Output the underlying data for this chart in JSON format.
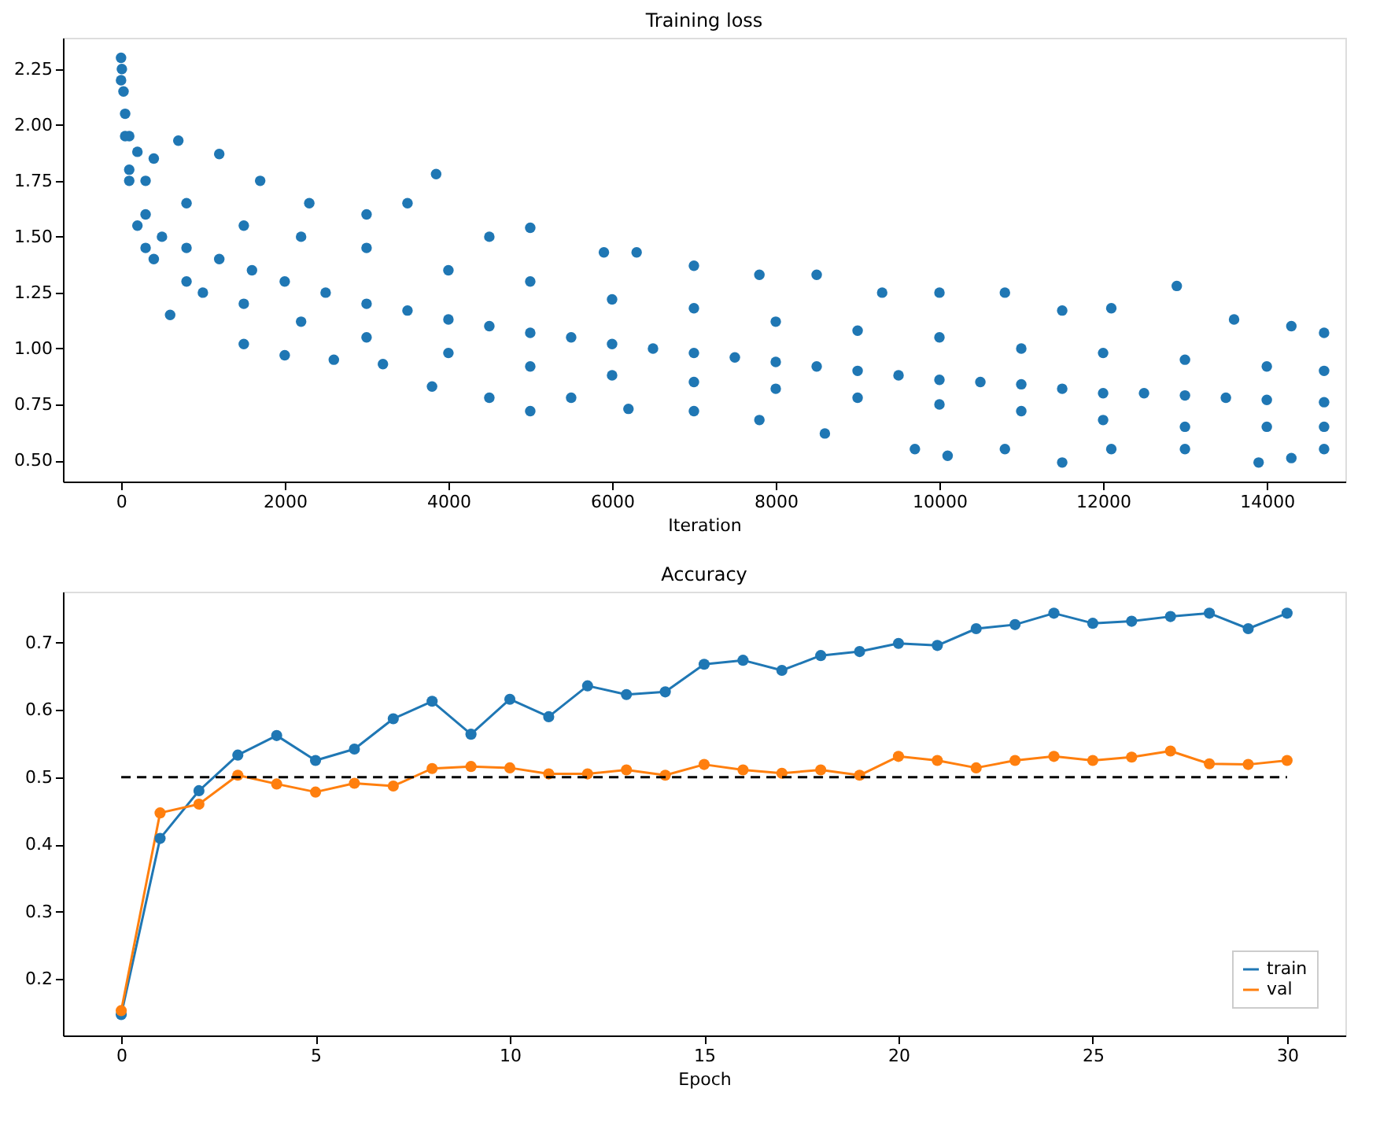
{
  "chart_data": [
    {
      "type": "scatter",
      "title": "Training loss",
      "xlabel": "Iteration",
      "xlim": [
        -710,
        14960
      ],
      "ylim": [
        0.405,
        2.39
      ],
      "xticks": [
        0,
        2000,
        4000,
        6000,
        8000,
        10000,
        12000,
        14000
      ],
      "yticks": [
        {
          "value": 0.5,
          "label": "0.50"
        },
        0.75,
        {
          "value": 1.0,
          "label": "1.00"
        },
        1.25,
        {
          "value": 1.5,
          "label": "1.50"
        },
        1.75,
        {
          "value": 2.0,
          "label": "2.00"
        },
        2.25
      ],
      "grid": false,
      "legend": false,
      "marker": "circle",
      "series": [
        {
          "color": "#1f77b4",
          "x": [
            0,
            0,
            10,
            30,
            50,
            100,
            200,
            400,
            700,
            1200,
            1700,
            2300,
            3000,
            3500,
            3850,
            4500,
            5000,
            5900,
            6300,
            7000,
            7800,
            8500,
            9300,
            10000,
            10800,
            11500,
            12100,
            12900,
            13600,
            14300,
            14700,
            50,
            100,
            200,
            400,
            600,
            1000,
            1500,
            2000,
            2600,
            3200,
            3800,
            4500,
            5000,
            5500,
            6200,
            7000,
            7800,
            8600,
            9700,
            10100,
            10800,
            11500,
            12100,
            13000,
            13900,
            14300,
            14700,
            100,
            300,
            500,
            800,
            1200,
            1600,
            2000,
            2500,
            3000,
            3500,
            4000,
            4500,
            5000,
            5500,
            6000,
            6500,
            7000,
            7500,
            8000,
            8500,
            9000,
            9500,
            10000,
            10500,
            11000,
            11500,
            12000,
            12500,
            13000,
            13500,
            14000,
            14700,
            300,
            800,
            1500,
            2200,
            3000,
            4000,
            5000,
            6000,
            7000,
            8000,
            9000,
            10000,
            11000,
            12000,
            13000,
            14000,
            14700,
            300,
            800,
            1500,
            2200,
            3000,
            4000,
            5000,
            6000,
            7000,
            8000,
            9000,
            10000,
            11000,
            12000,
            13000,
            14000,
            14700
          ],
          "values": [
            2.3,
            2.2,
            2.25,
            2.15,
            2.05,
            1.95,
            1.88,
            1.85,
            1.93,
            1.87,
            1.75,
            1.65,
            1.6,
            1.65,
            1.78,
            1.5,
            1.54,
            1.43,
            1.43,
            1.37,
            1.33,
            1.33,
            1.25,
            1.25,
            1.25,
            1.17,
            1.18,
            1.28,
            1.13,
            1.1,
            1.07,
            1.95,
            1.75,
            1.55,
            1.4,
            1.15,
            1.25,
            1.02,
            0.97,
            0.95,
            0.93,
            0.83,
            0.78,
            0.72,
            0.78,
            0.73,
            0.72,
            0.68,
            0.62,
            0.55,
            0.52,
            0.55,
            0.49,
            0.55,
            0.55,
            0.49,
            0.51,
            0.55,
            1.8,
            1.6,
            1.5,
            1.45,
            1.4,
            1.35,
            1.3,
            1.25,
            1.2,
            1.17,
            1.13,
            1.1,
            1.07,
            1.05,
            1.02,
            1.0,
            0.98,
            0.96,
            0.94,
            0.92,
            0.9,
            0.88,
            0.86,
            0.85,
            0.84,
            0.82,
            0.8,
            0.8,
            0.79,
            0.78,
            0.77,
            0.76,
            1.75,
            1.65,
            1.55,
            1.5,
            1.45,
            1.35,
            1.3,
            1.22,
            1.18,
            1.12,
            1.08,
            1.05,
            1.0,
            0.98,
            0.95,
            0.92,
            0.9,
            1.45,
            1.3,
            1.2,
            1.12,
            1.05,
            0.98,
            0.92,
            0.88,
            0.85,
            0.82,
            0.78,
            0.75,
            0.72,
            0.68,
            0.65,
            0.65,
            0.65
          ]
        }
      ]
    },
    {
      "type": "line",
      "title": "Accuracy",
      "xlabel": "Epoch",
      "xlim": [
        -1.5,
        31.5
      ],
      "ylim": [
        0.116,
        0.776
      ],
      "xticks": [
        0,
        5,
        10,
        15,
        20,
        25,
        30
      ],
      "yticks": [
        0.2,
        0.3,
        0.4,
        0.5,
        0.6,
        0.7
      ],
      "x": [
        0,
        1,
        2,
        3,
        4,
        5,
        6,
        7,
        8,
        9,
        10,
        11,
        12,
        13,
        14,
        15,
        16,
        17,
        18,
        19,
        20,
        21,
        22,
        23,
        24,
        25,
        26,
        27,
        28,
        29,
        30
      ],
      "grid": false,
      "legend": "bottom right",
      "marker": "circle",
      "line_style": "solid",
      "ref_lines": [
        {
          "axis": "y",
          "value": 0.5,
          "color": "#000000",
          "line_style": "dashed"
        }
      ],
      "series": [
        {
          "name": "train",
          "color": "#1f77b4",
          "values": [
            0.147,
            0.409,
            0.48,
            0.533,
            0.562,
            0.525,
            0.542,
            0.587,
            0.613,
            0.564,
            0.616,
            0.59,
            0.636,
            0.623,
            0.627,
            0.668,
            0.674,
            0.659,
            0.681,
            0.687,
            0.699,
            0.696,
            0.721,
            0.727,
            0.744,
            0.729,
            0.732,
            0.739,
            0.744,
            0.721,
            0.744
          ]
        },
        {
          "name": "val",
          "color": "#ff7f0e",
          "values": [
            0.153,
            0.447,
            0.46,
            0.503,
            0.49,
            0.478,
            0.491,
            0.487,
            0.513,
            0.516,
            0.514,
            0.505,
            0.505,
            0.511,
            0.503,
            0.519,
            0.511,
            0.506,
            0.511,
            0.503,
            0.531,
            0.525,
            0.514,
            0.525,
            0.531,
            0.525,
            0.53,
            0.539,
            0.52,
            0.519,
            0.525
          ]
        }
      ]
    }
  ]
}
